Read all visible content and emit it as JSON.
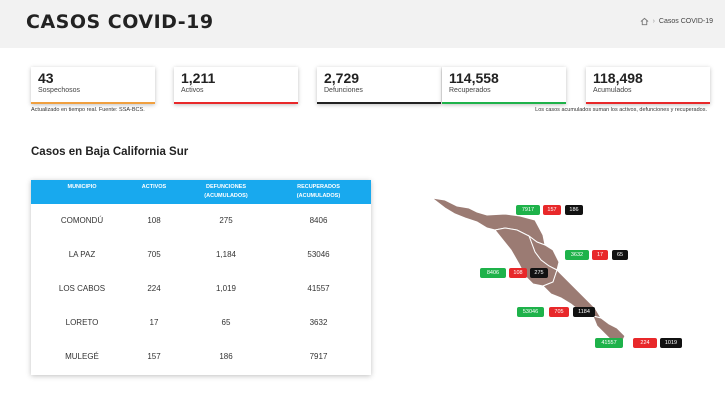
{
  "header": {
    "title": "CASOS COVID-19",
    "breadcrumb": {
      "separator": "›",
      "current": "Casos COVID-19"
    }
  },
  "cards": [
    {
      "value": "43",
      "label": "Sospechosos",
      "color": "#f0a040"
    },
    {
      "value": "1,211",
      "label": "Activos",
      "color": "#e8282a"
    },
    {
      "value": "2,729",
      "label": "Defunciones",
      "color": "#222222"
    },
    {
      "value": "114,558",
      "label": "Recuperados",
      "color": "#1eb24a"
    },
    {
      "value": "118,498",
      "label": "Acumulados",
      "color": "#e8282a"
    }
  ],
  "notes": {
    "left": "Actualizado en tiempo real. Fuente: SSA-BCS.",
    "right": "Los casos acumulados suman los activos, defunciones y recuperados."
  },
  "section_title": "Casos en Baja California Sur",
  "table": {
    "headers": {
      "municipio": "MUNICIPIO",
      "activos": "ACTIVOS",
      "defunciones_1": "DEFUNCIONES",
      "defunciones_2": "(ACUMULADOS)",
      "recuperados_1": "RECUPERADOS",
      "recuperados_2": "(ACUMULADOS)"
    },
    "rows": [
      {
        "municipio": "COMONDÚ",
        "activos": "108",
        "defunciones": "275",
        "recuperados": "8406"
      },
      {
        "municipio": "LA PAZ",
        "activos": "705",
        "defunciones": "1,184",
        "recuperados": "53046"
      },
      {
        "municipio": "LOS CABOS",
        "activos": "224",
        "defunciones": "1,019",
        "recuperados": "41557"
      },
      {
        "municipio": "LORETO",
        "activos": "17",
        "defunciones": "65",
        "recuperados": "3632"
      },
      {
        "municipio": "MULEGÉ",
        "activos": "157",
        "defunciones": "186",
        "recuperados": "7917"
      }
    ]
  },
  "map": {
    "colors": {
      "land": "#9b7b73",
      "border": "#ffffff",
      "green": "#1eb24a",
      "red": "#e8282a",
      "black": "#111111"
    },
    "badges": {
      "mulege": {
        "recuperados": "7917",
        "activos": "157",
        "defunciones": "186"
      },
      "loreto": {
        "recuperados": "3632",
        "activos": "17",
        "defunciones": "65"
      },
      "comondu": {
        "recuperados": "8406",
        "activos": "108",
        "defunciones": "275"
      },
      "la_paz": {
        "recuperados": "53046",
        "activos": "705",
        "defunciones": "1184"
      },
      "los_cabos": {
        "recuperados": "41557",
        "activos": "224",
        "defunciones": "1019"
      }
    }
  }
}
